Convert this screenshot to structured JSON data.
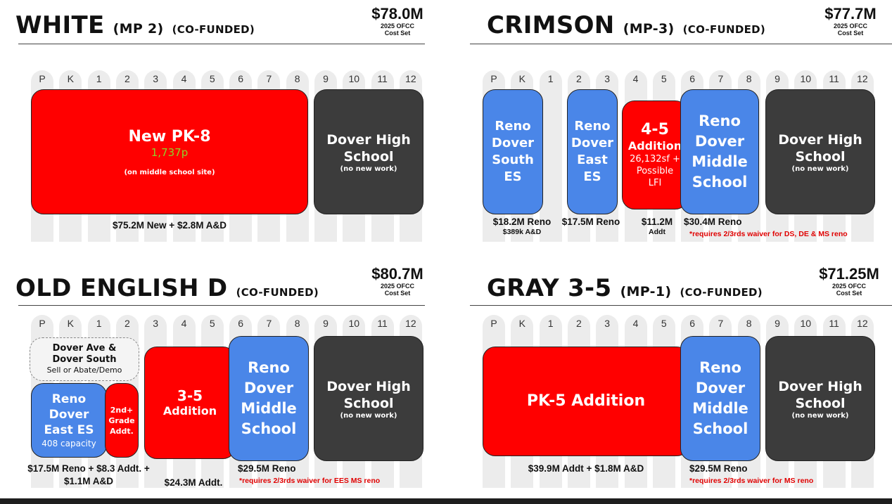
{
  "grades": [
    "P",
    "K",
    "1",
    "2",
    "3",
    "4",
    "5",
    "6",
    "7",
    "8",
    "9",
    "10",
    "11",
    "12"
  ],
  "panels": {
    "white": {
      "title": "WHITE",
      "title_suffix": "(MP 2)",
      "title_suffix2": "(CO-FUNDED)",
      "cost": "$78.0M",
      "cost_sub1": "2025 OFCC",
      "cost_sub2": "Cost Set",
      "blocks": {
        "newpk8": {
          "line1": "New PK-8",
          "capacity": "1,737p",
          "note": "(on middle school site)"
        },
        "dhs": {
          "line1": "Dover High",
          "line2": "School",
          "note": "(no new work)"
        }
      },
      "caption": "$75.2M New + $2.8M A&D"
    },
    "crimson": {
      "title": "CRIMSON",
      "title_suffix": "(MP-3)",
      "title_suffix2": "(CO-FUNDED)",
      "cost": "$77.7M",
      "cost_sub1": "2025 OFCC",
      "cost_sub2": "Cost Set",
      "blocks": {
        "south": {
          "l1": "Reno",
          "l2": "Dover",
          "l3": "South",
          "l4": "ES"
        },
        "east": {
          "l1": "Reno",
          "l2": "Dover",
          "l3": "East",
          "l4": "ES"
        },
        "addition": {
          "l1": "4-5",
          "l2": "Addition",
          "l3": "26,132sf +",
          "l4": "Possible",
          "l5": "LFI"
        },
        "middle": {
          "l1": "Reno",
          "l2": "Dover",
          "l3": "Middle",
          "l4": "School"
        },
        "dhs": {
          "line1": "Dover High",
          "line2": "School",
          "note": "(no new work)"
        }
      },
      "captions": {
        "south": "$18.2M Reno",
        "south_sub": "$389k A&D",
        "east": "$17.5M Reno",
        "add": "$11.2M",
        "add_sub": "Addt",
        "middle": "$30.4M Reno"
      },
      "waiver": "*requires 2/3rds waiver for DS, DE & MS reno"
    },
    "oed": {
      "title": "OLD ENGLISH D",
      "title_suffix": "(CO-FUNDED)",
      "cost": "$80.7M",
      "cost_sub1": "2025 OFCC",
      "cost_sub2": "Cost Set",
      "blocks": {
        "doverave": {
          "l1": "Dover Ave &",
          "l2": "Dover South",
          "l3": "Sell or Abate/Demo"
        },
        "east": {
          "l1": "Reno",
          "l2": "Dover",
          "l3": "East ES",
          "l4": "408 capacity"
        },
        "grade2": {
          "l1": "2nd+",
          "l2": "Grade",
          "l3": "Addt."
        },
        "addition": {
          "l1": "3-5",
          "l2": "Addition"
        },
        "middle": {
          "l1": "Reno",
          "l2": "Dover",
          "l3": "Middle",
          "l4": "School"
        },
        "dhs": {
          "line1": "Dover High",
          "line2": "School",
          "note": "(no new work)"
        }
      },
      "captions": {
        "east1": "$17.5M Reno + $8.3 Addt. +",
        "east2": "$1.1M A&D",
        "add": "$24.3M Addt.",
        "middle": "$29.5M Reno"
      },
      "waiver": "*requires 2/3rds waiver for EES MS reno"
    },
    "gray": {
      "title": "GRAY 3-5",
      "title_suffix": "(MP-1)",
      "title_suffix2": "(CO-FUNDED)",
      "cost": "$71.25M",
      "cost_sub1": "2025 OFCC",
      "cost_sub2": "Cost Set",
      "blocks": {
        "pk5": {
          "line1": "PK-5 Addition"
        },
        "middle": {
          "l1": "Reno",
          "l2": "Dover",
          "l3": "Middle",
          "l4": "School"
        },
        "dhs": {
          "line1": "Dover High",
          "line2": "School",
          "note": "(no new work)"
        }
      },
      "captions": {
        "pk5": "$39.9M Addt + $1.8M A&D",
        "middle": "$29.5M Reno"
      },
      "waiver": "*requires 2/3rds waiver for MS reno"
    }
  },
  "colors": {
    "new": "#ff0000",
    "reno": "#4a86e8",
    "high_school": "#3c3c3c",
    "capacity_text": "#8ed42a",
    "waiver_text": "#e00000"
  }
}
